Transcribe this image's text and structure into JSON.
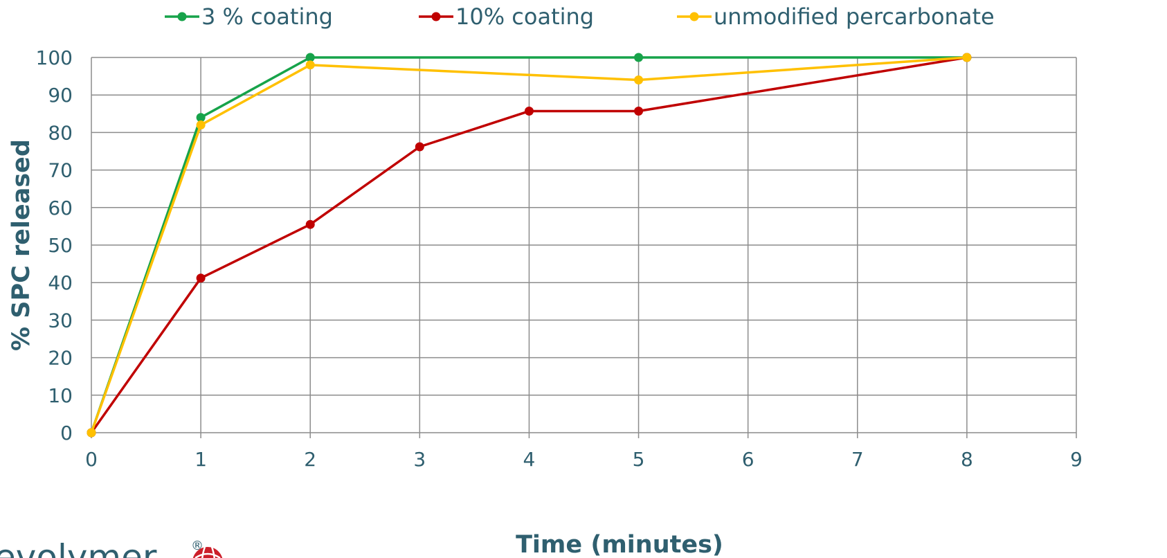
{
  "chart_data": {
    "type": "line",
    "title": "",
    "xlabel": "Time (minutes)",
    "ylabel": "% SPC released",
    "xlim": [
      0,
      9
    ],
    "ylim": [
      0,
      100
    ],
    "xticks": [
      "0",
      "1",
      "2",
      "3",
      "4",
      "5",
      "6",
      "7",
      "8",
      "9"
    ],
    "yticks": [
      "0",
      "10",
      "20",
      "30",
      "40",
      "50",
      "60",
      "70",
      "80",
      "90",
      "100"
    ],
    "grid": true,
    "legend_position": "top",
    "series": [
      {
        "name": "3 % coating",
        "color": "#17a34a",
        "points": [
          [
            0,
            0
          ],
          [
            1,
            84
          ],
          [
            2,
            100
          ],
          [
            5,
            100
          ],
          [
            8,
            100
          ]
        ]
      },
      {
        "name": "10% coating",
        "color": "#c00000",
        "points": [
          [
            0,
            0
          ],
          [
            1,
            41.2
          ],
          [
            2,
            55.5
          ],
          [
            3,
            76.2
          ],
          [
            4,
            85.7
          ],
          [
            5,
            85.7
          ],
          [
            8,
            100
          ]
        ]
      },
      {
        "name": "unmodified percarbonate",
        "color": "#ffc000",
        "points": [
          [
            0,
            0
          ],
          [
            1,
            82
          ],
          [
            2,
            98
          ],
          [
            5,
            94
          ],
          [
            8,
            100
          ]
        ]
      }
    ]
  },
  "logo": {
    "text": "evolymer",
    "registered": "®",
    "brand_color": "#cc1f2a"
  }
}
